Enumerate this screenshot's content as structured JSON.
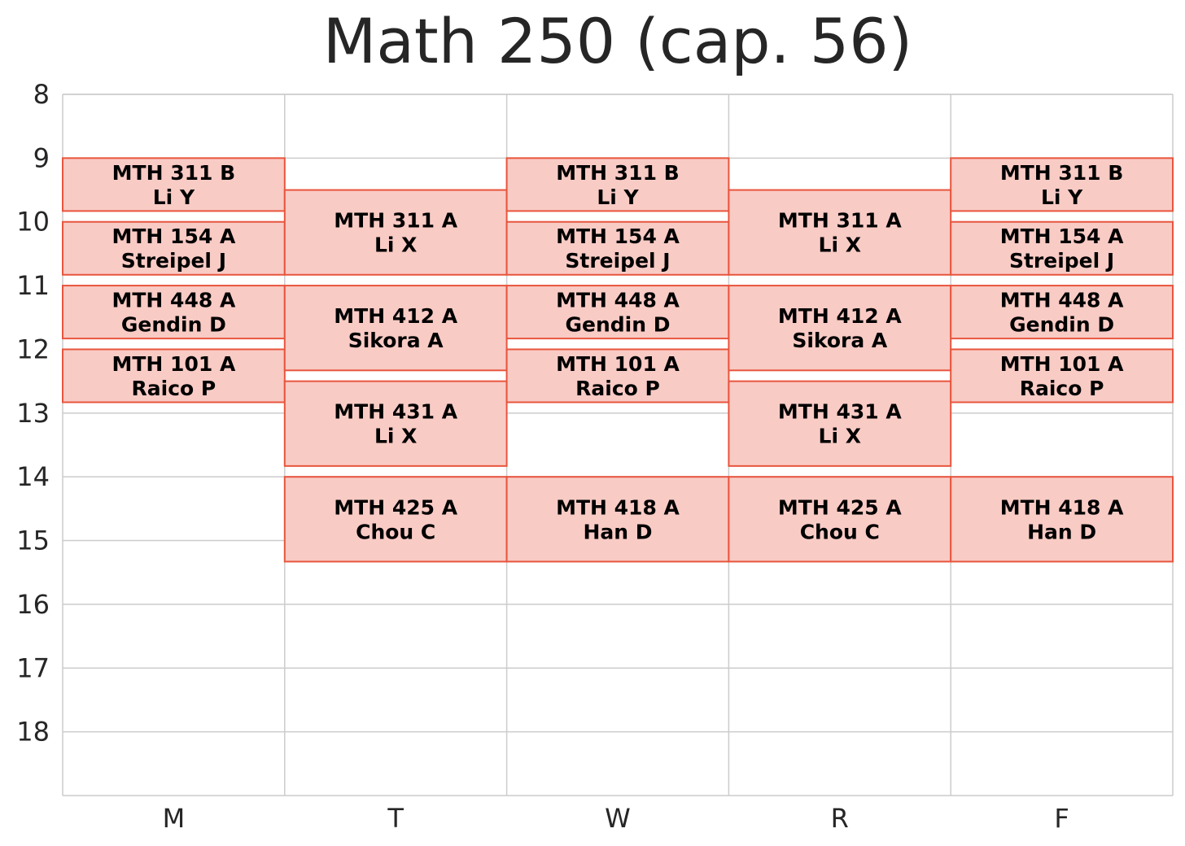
{
  "chart_data": {
    "type": "timetable",
    "title": "Math 250 (cap. 56)",
    "days": [
      "M",
      "T",
      "W",
      "R",
      "F"
    ],
    "hour_ticks": [
      "8",
      "9",
      "10",
      "11",
      "12",
      "13",
      "14",
      "15",
      "16",
      "17",
      "18"
    ],
    "ylim": [
      8,
      19
    ],
    "grid": true,
    "colors": {
      "fill": "#f9cbc5",
      "edge": "#e8553d",
      "grid": "#cccccc",
      "text": "#262626"
    },
    "blocks": [
      {
        "day": "M",
        "start": 9.0,
        "end": 9.83,
        "course": "MTH 311 B",
        "instructor": "Li Y"
      },
      {
        "day": "M",
        "start": 10.0,
        "end": 10.83,
        "course": "MTH 154 A",
        "instructor": "Streipel J"
      },
      {
        "day": "M",
        "start": 11.0,
        "end": 11.83,
        "course": "MTH 448 A",
        "instructor": "Gendin D"
      },
      {
        "day": "M",
        "start": 12.0,
        "end": 12.83,
        "course": "MTH 101 A",
        "instructor": "Raico P"
      },
      {
        "day": "T",
        "start": 9.5,
        "end": 10.83,
        "course": "MTH 311 A",
        "instructor": "Li X"
      },
      {
        "day": "T",
        "start": 11.0,
        "end": 12.33,
        "course": "MTH 412 A",
        "instructor": "Sikora A"
      },
      {
        "day": "T",
        "start": 12.5,
        "end": 13.83,
        "course": "MTH 431 A",
        "instructor": "Li X"
      },
      {
        "day": "T",
        "start": 14.0,
        "end": 15.33,
        "course": "MTH 425 A",
        "instructor": "Chou C"
      },
      {
        "day": "W",
        "start": 9.0,
        "end": 9.83,
        "course": "MTH 311 B",
        "instructor": "Li Y"
      },
      {
        "day": "W",
        "start": 10.0,
        "end": 10.83,
        "course": "MTH 154 A",
        "instructor": "Streipel J"
      },
      {
        "day": "W",
        "start": 11.0,
        "end": 11.83,
        "course": "MTH 448 A",
        "instructor": "Gendin D"
      },
      {
        "day": "W",
        "start": 12.0,
        "end": 12.83,
        "course": "MTH 101 A",
        "instructor": "Raico P"
      },
      {
        "day": "W",
        "start": 14.0,
        "end": 15.33,
        "course": "MTH 418 A",
        "instructor": "Han D"
      },
      {
        "day": "R",
        "start": 9.5,
        "end": 10.83,
        "course": "MTH 311 A",
        "instructor": "Li X"
      },
      {
        "day": "R",
        "start": 11.0,
        "end": 12.33,
        "course": "MTH 412 A",
        "instructor": "Sikora A"
      },
      {
        "day": "R",
        "start": 12.5,
        "end": 13.83,
        "course": "MTH 431 A",
        "instructor": "Li X"
      },
      {
        "day": "R",
        "start": 14.0,
        "end": 15.33,
        "course": "MTH 425 A",
        "instructor": "Chou C"
      },
      {
        "day": "F",
        "start": 9.0,
        "end": 9.83,
        "course": "MTH 311 B",
        "instructor": "Li Y"
      },
      {
        "day": "F",
        "start": 10.0,
        "end": 10.83,
        "course": "MTH 154 A",
        "instructor": "Streipel J"
      },
      {
        "day": "F",
        "start": 11.0,
        "end": 11.83,
        "course": "MTH 448 A",
        "instructor": "Gendin D"
      },
      {
        "day": "F",
        "start": 12.0,
        "end": 12.83,
        "course": "MTH 101 A",
        "instructor": "Raico P"
      },
      {
        "day": "F",
        "start": 14.0,
        "end": 15.33,
        "course": "MTH 418 A",
        "instructor": "Han D"
      }
    ]
  }
}
